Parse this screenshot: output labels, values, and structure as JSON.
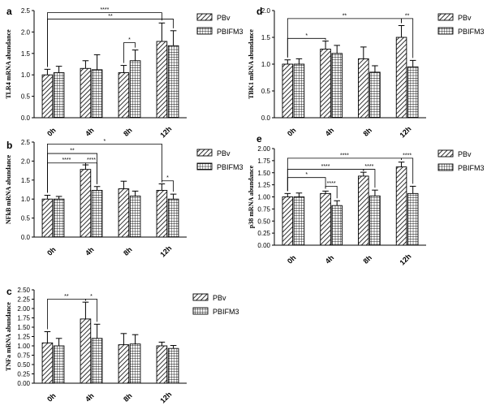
{
  "chart_data": [
    {
      "id": "a",
      "type": "bar",
      "panel_label": "a",
      "ylabel": "TLR4 mRNA abundance",
      "ylim": [
        0,
        2.5
      ],
      "yticks": [
        0.0,
        0.5,
        1.0,
        1.5,
        2.0,
        2.5
      ],
      "categories": [
        "0h",
        "4h",
        "8h",
        "12h"
      ],
      "series": [
        {
          "name": "PBv",
          "values": [
            1.0,
            1.15,
            1.05,
            1.78
          ],
          "errors": [
            0.13,
            0.18,
            0.17,
            0.43
          ]
        },
        {
          "name": "PBIFM3",
          "values": [
            1.05,
            1.12,
            1.33,
            1.68
          ],
          "errors": [
            0.15,
            0.35,
            0.25,
            0.35
          ]
        }
      ],
      "annotations": [
        {
          "text": "*",
          "from": [
            2,
            0
          ],
          "to": [
            2,
            1
          ],
          "level": 1.75
        },
        {
          "text": "**",
          "from": [
            0,
            0
          ],
          "to": [
            3,
            1
          ],
          "level": 2.3
        },
        {
          "text": "****",
          "from": [
            0,
            0
          ],
          "to": [
            3,
            0
          ],
          "level": 2.45
        }
      ]
    },
    {
      "id": "b",
      "type": "bar",
      "panel_label": "b",
      "ylabel": "NFkB mRNA abundance",
      "ylim": [
        0,
        2.5
      ],
      "yticks": [
        0.0,
        0.5,
        1.0,
        1.5,
        2.0,
        2.5
      ],
      "categories": [
        "0h",
        "4h",
        "8h",
        "12h"
      ],
      "series": [
        {
          "name": "PBv",
          "values": [
            1.0,
            1.78,
            1.27,
            1.23
          ],
          "errors": [
            0.1,
            0.12,
            0.2,
            0.17
          ]
        },
        {
          "name": "PBIFM3",
          "values": [
            1.0,
            1.23,
            1.08,
            1.0
          ],
          "errors": [
            0.07,
            0.1,
            0.13,
            0.13
          ]
        }
      ],
      "annotations": [
        {
          "text": "****",
          "from": [
            0,
            0
          ],
          "to": [
            1,
            0
          ],
          "level": 1.95
        },
        {
          "text": "****",
          "from": [
            1,
            0
          ],
          "to": [
            1,
            1
          ],
          "level": 1.95
        },
        {
          "text": "**",
          "from": [
            0,
            0
          ],
          "to": [
            1,
            1
          ],
          "level": 2.2
        },
        {
          "text": "*",
          "from": [
            0,
            0
          ],
          "to": [
            3,
            0
          ],
          "level": 2.45
        },
        {
          "text": "*",
          "from": [
            3,
            0
          ],
          "to": [
            3,
            1
          ],
          "level": 1.48
        }
      ]
    },
    {
      "id": "c",
      "type": "bar",
      "panel_label": "c",
      "ylabel": "TNFa mRNA abundance",
      "ylim": [
        0,
        2.5
      ],
      "yticks": [
        0.0,
        0.25,
        0.5,
        0.75,
        1.0,
        1.25,
        1.5,
        1.75,
        2.0,
        2.25,
        2.5
      ],
      "categories": [
        "0h",
        "4h",
        "8h",
        "12h"
      ],
      "series": [
        {
          "name": "PBv",
          "values": [
            1.08,
            1.72,
            1.03,
            1.0
          ],
          "errors": [
            0.3,
            0.45,
            0.3,
            0.1
          ]
        },
        {
          "name": "PBIFM3",
          "values": [
            1.0,
            1.2,
            1.05,
            0.93
          ],
          "errors": [
            0.2,
            0.38,
            0.25,
            0.08
          ]
        }
      ],
      "annotations": [
        {
          "text": "**",
          "from": [
            0,
            0
          ],
          "to": [
            1,
            0
          ],
          "level": 2.25
        },
        {
          "text": "*",
          "from": [
            1,
            0
          ],
          "to": [
            1,
            1
          ],
          "level": 2.25
        }
      ]
    },
    {
      "id": "d",
      "type": "bar",
      "panel_label": "d",
      "ylabel": "TBK1 mRNA abundance",
      "ylim": [
        0,
        2.0
      ],
      "yticks": [
        0.0,
        0.5,
        1.0,
        1.5,
        2.0
      ],
      "categories": [
        "0h",
        "4h",
        "8h",
        "12h"
      ],
      "series": [
        {
          "name": "PBv",
          "values": [
            1.0,
            1.28,
            1.1,
            1.5
          ],
          "errors": [
            0.08,
            0.15,
            0.22,
            0.22
          ]
        },
        {
          "name": "PBIFM3",
          "values": [
            1.0,
            1.2,
            0.85,
            0.95
          ],
          "errors": [
            0.1,
            0.15,
            0.12,
            0.12
          ]
        }
      ],
      "annotations": [
        {
          "text": "*",
          "from": [
            0,
            0
          ],
          "to": [
            1,
            0
          ],
          "level": 1.48
        },
        {
          "text": "**",
          "from": [
            0,
            0
          ],
          "to": [
            3,
            0
          ],
          "level": 1.85
        },
        {
          "text": "**",
          "from": [
            3,
            0
          ],
          "to": [
            3,
            1
          ],
          "level": 1.85
        }
      ]
    },
    {
      "id": "e",
      "type": "bar",
      "panel_label": "e",
      "ylabel": "p38 mRNA abundance",
      "ylim": [
        0,
        2.0
      ],
      "yticks": [
        0.0,
        0.25,
        0.5,
        0.75,
        1.0,
        1.25,
        1.5,
        1.75,
        2.0
      ],
      "categories": [
        "0h",
        "4h",
        "8h",
        "12h"
      ],
      "series": [
        {
          "name": "PBv",
          "values": [
            1.0,
            1.07,
            1.43,
            1.62
          ],
          "errors": [
            0.07,
            0.05,
            0.08,
            0.1
          ]
        },
        {
          "name": "PBIFM3",
          "values": [
            1.0,
            0.82,
            1.02,
            1.07
          ],
          "errors": [
            0.08,
            0.1,
            0.12,
            0.15
          ]
        }
      ],
      "annotations": [
        {
          "text": "****",
          "from": [
            1,
            0
          ],
          "to": [
            1,
            1
          ],
          "level": 1.22
        },
        {
          "text": "*",
          "from": [
            0,
            0
          ],
          "to": [
            1,
            0
          ],
          "level": 1.4
        },
        {
          "text": "****",
          "from": [
            0,
            0
          ],
          "to": [
            2,
            0
          ],
          "level": 1.57
        },
        {
          "text": "****",
          "from": [
            2,
            0
          ],
          "to": [
            2,
            1
          ],
          "level": 1.57
        },
        {
          "text": "****",
          "from": [
            0,
            0
          ],
          "to": [
            3,
            0
          ],
          "level": 1.8
        },
        {
          "text": "****",
          "from": [
            3,
            0
          ],
          "to": [
            3,
            1
          ],
          "level": 1.8
        }
      ]
    }
  ]
}
